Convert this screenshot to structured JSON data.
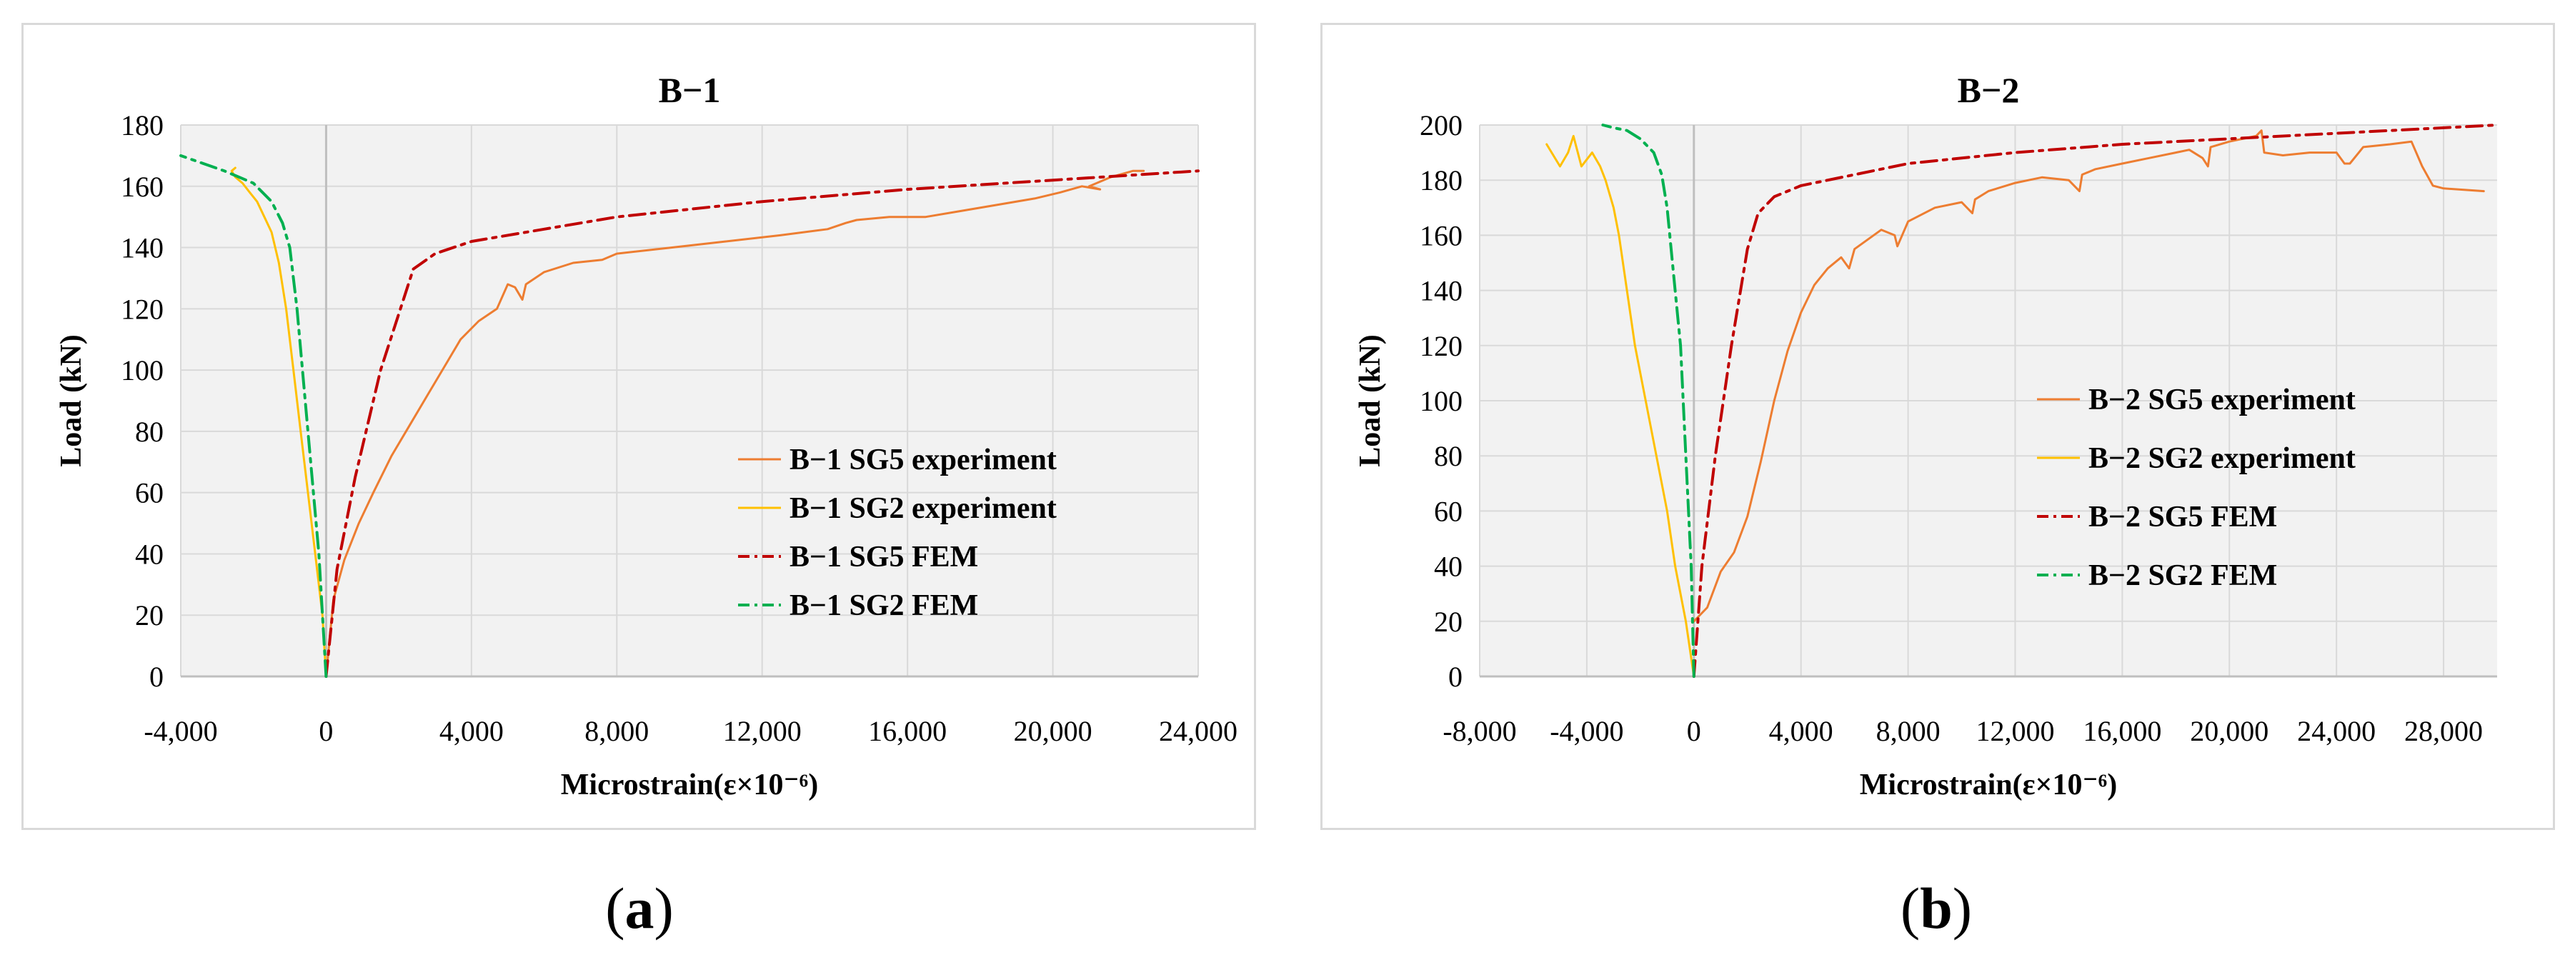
{
  "chart_data": [
    {
      "type": "line",
      "title": "B−1",
      "xlabel": "Microstrain(ε×10⁻⁶)",
      "ylabel": "Load (kN)",
      "xlim": [
        -4000,
        24000
      ],
      "ylim": [
        0,
        180
      ],
      "x_ticks": [
        -4000,
        0,
        4000,
        8000,
        12000,
        16000,
        20000,
        24000
      ],
      "x_tick_labels": [
        "-4,000",
        "0",
        "4,000",
        "8,000",
        "12,000",
        "16,000",
        "20,000",
        "24,000"
      ],
      "y_ticks": [
        0,
        20,
        40,
        60,
        80,
        100,
        120,
        140,
        160,
        180
      ],
      "y_tick_labels": [
        "0",
        "20",
        "40",
        "60",
        "80",
        "100",
        "120",
        "140",
        "160",
        "180"
      ],
      "grid": true,
      "legend_position": "center-right",
      "series": [
        {
          "name": "B−1 SG5 experiment",
          "color": "#ed7d31",
          "style": "solid",
          "x": [
            0,
            200,
            500,
            900,
            1300,
            1800,
            2300,
            2800,
            3300,
            3700,
            4200,
            4700,
            5000,
            5200,
            5400,
            5500,
            6000,
            6800,
            7600,
            8000,
            9500,
            11000,
            12500,
            13800,
            14300,
            14600,
            15500,
            16500,
            17500,
            18500,
            19500,
            20200,
            20800,
            21300,
            21000,
            21600,
            22200,
            22500
          ],
          "y": [
            0,
            25,
            38,
            50,
            60,
            72,
            82,
            92,
            102,
            110,
            116,
            120,
            128,
            127,
            123,
            128,
            132,
            135,
            136,
            138,
            140,
            142,
            144,
            146,
            148,
            149,
            150,
            150,
            152,
            154,
            156,
            158,
            160,
            159,
            160,
            163,
            165,
            165
          ]
        },
        {
          "name": "B−1 SG2 experiment",
          "color": "#ffc000",
          "style": "solid",
          "x": [
            0,
            -100,
            -300,
            -500,
            -700,
            -900,
            -1100,
            -1300,
            -1500,
            -1700,
            -1900,
            -2100,
            -2300,
            -2500,
            -2600,
            -2500
          ],
          "y": [
            0,
            20,
            40,
            60,
            80,
            100,
            120,
            135,
            145,
            150,
            155,
            158,
            161,
            163,
            165,
            166
          ]
        },
        {
          "name": "B−1 SG5 FEM",
          "color": "#c00000",
          "style": "dashdot",
          "x": [
            0,
            300,
            800,
            1500,
            2400,
            3000,
            4000,
            6000,
            8000,
            12000,
            16000,
            20000,
            24000
          ],
          "y": [
            0,
            35,
            65,
            100,
            133,
            138,
            142,
            146,
            150,
            155,
            159,
            162,
            165
          ]
        },
        {
          "name": "B−1 SG2 FEM",
          "color": "#00b050",
          "style": "dashdot",
          "x": [
            0,
            -200,
            -500,
            -800,
            -1000,
            -1200,
            -1500,
            -2000,
            -2800,
            -4000
          ],
          "y": [
            0,
            40,
            80,
            120,
            140,
            148,
            155,
            161,
            165,
            170
          ]
        }
      ]
    },
    {
      "type": "line",
      "title": "B−2",
      "xlabel": "Microstrain(ε×10⁻⁶)",
      "ylabel": "Load (kN)",
      "xlim": [
        -8000,
        30000
      ],
      "ylim": [
        0,
        200
      ],
      "x_ticks": [
        -8000,
        -4000,
        0,
        4000,
        8000,
        12000,
        16000,
        20000,
        24000,
        28000
      ],
      "x_tick_labels": [
        "-8,000",
        "-4,000",
        "0",
        "4,000",
        "8,000",
        "12,000",
        "16,000",
        "20,000",
        "24,000",
        "28,000"
      ],
      "y_ticks": [
        0,
        20,
        40,
        60,
        80,
        100,
        120,
        140,
        160,
        180,
        200
      ],
      "y_tick_labels": [
        "0",
        "20",
        "40",
        "60",
        "80",
        "100",
        "120",
        "140",
        "160",
        "180",
        "200"
      ],
      "grid": true,
      "legend_position": "center-right",
      "series": [
        {
          "name": "B−2 SG5 experiment",
          "color": "#ed7d31",
          "style": "solid",
          "x": [
            0,
            500,
            1000,
            1500,
            2000,
            2500,
            3000,
            3500,
            4000,
            4500,
            5000,
            5500,
            5800,
            6000,
            7000,
            7500,
            7600,
            8000,
            9000,
            10000,
            10400,
            10500,
            11000,
            12000,
            13000,
            14000,
            14400,
            14500,
            15000,
            16000,
            17000,
            18000,
            18500,
            19000,
            19200,
            19300,
            20000,
            21000,
            21200,
            21300,
            22000,
            23000,
            24000,
            24300,
            24500,
            25000,
            26000,
            26800,
            27200,
            27600,
            28000,
            29500
          ],
          "y": [
            20,
            25,
            38,
            45,
            58,
            78,
            100,
            118,
            132,
            142,
            148,
            152,
            148,
            155,
            162,
            160,
            156,
            165,
            170,
            172,
            168,
            173,
            176,
            179,
            181,
            180,
            176,
            182,
            184,
            186,
            188,
            190,
            191,
            188,
            185,
            192,
            194,
            196,
            198,
            190,
            189,
            190,
            190,
            186,
            186,
            192,
            193,
            194,
            185,
            178,
            177,
            176
          ]
        },
        {
          "name": "B−2 SG2 experiment",
          "color": "#ffc000",
          "style": "solid",
          "x": [
            0,
            -300,
            -700,
            -1000,
            -1400,
            -1800,
            -2200,
            -2500,
            -2800,
            -3000,
            -3300,
            -3500,
            -3800,
            -4200,
            -4500,
            -4700,
            -5000,
            -5500
          ],
          "y": [
            0,
            20,
            40,
            60,
            80,
            100,
            120,
            140,
            160,
            170,
            180,
            185,
            190,
            185,
            196,
            190,
            185,
            193
          ]
        },
        {
          "name": "B−2 SG5 FEM",
          "color": "#c00000",
          "style": "dashdot",
          "x": [
            0,
            300,
            800,
            1400,
            2000,
            2400,
            3000,
            4000,
            6000,
            8000,
            12000,
            16000,
            20000,
            24000,
            28000,
            30000
          ],
          "y": [
            0,
            40,
            80,
            120,
            155,
            168,
            174,
            178,
            182,
            186,
            190,
            193,
            195,
            197,
            199,
            200
          ]
        },
        {
          "name": "B−2 SG2 FEM",
          "color": "#00b050",
          "style": "dashdot",
          "x": [
            0,
            -100,
            -300,
            -500,
            -800,
            -1000,
            -1200,
            -1500,
            -2000,
            -2500,
            -3000,
            -3400
          ],
          "y": [
            0,
            40,
            80,
            120,
            150,
            170,
            182,
            190,
            195,
            198,
            199,
            200
          ]
        }
      ]
    }
  ],
  "captions": [
    "a",
    "b"
  ]
}
